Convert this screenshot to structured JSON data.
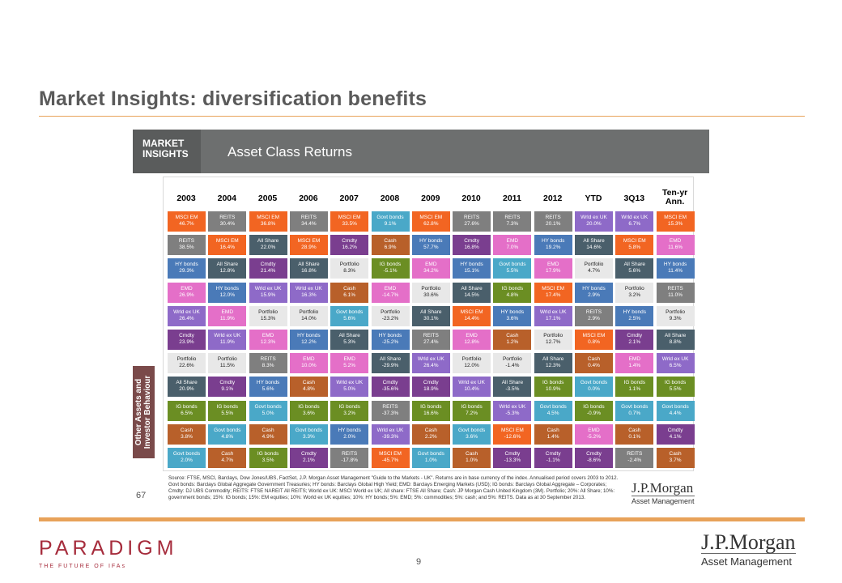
{
  "slide_title": "Market Insights: diversification benefits",
  "banner": {
    "tag_line1": "MARKET",
    "tag_line2": "INSIGHTS",
    "title": "Asset Class Returns"
  },
  "side_label": {
    "line1": "Other Assets and",
    "line2": "Investor Behaviour"
  },
  "years": [
    "2003",
    "2004",
    "2005",
    "2006",
    "2007",
    "2008",
    "2009",
    "2010",
    "2011",
    "2012",
    "YTD",
    "3Q13",
    "Ten-yr Ann."
  ],
  "asset_colors": {
    "MSCI EM": "#f26522",
    "REITS": "#7f7f7f",
    "All Share": "#4a5f6b",
    "HY bonds": "#4a7ab8",
    "EMD": "#e46fc8",
    "Wrld ex UK": "#8e6ac8",
    "Cmdty": "#7a3e8f",
    "Portfolio": "#e8e8e8",
    "Cash": "#b8602a",
    "IG bonds": "#6b8e23",
    "Govt bonds": "#4aa8c8"
  },
  "grid": [
    [
      [
        "MSCI EM",
        "46.7%"
      ],
      [
        "REITS",
        "30.4%"
      ],
      [
        "MSCI EM",
        "36.8%"
      ],
      [
        "REITS",
        "34.4%"
      ],
      [
        "MSCI EM",
        "33.5%"
      ],
      [
        "Govt bonds",
        "9.1%"
      ],
      [
        "MSCI EM",
        "62.8%"
      ],
      [
        "REITS",
        "27.6%"
      ],
      [
        "REITS",
        "7.3%"
      ],
      [
        "REITS",
        "20.1%"
      ],
      [
        "Wrld ex UK",
        "20.0%"
      ],
      [
        "Wrld ex UK",
        "6.7%"
      ],
      [
        "MSCI EM",
        "15.3%"
      ]
    ],
    [
      [
        "REITS",
        "38.5%"
      ],
      [
        "MSCI EM",
        "16.4%"
      ],
      [
        "All Share",
        "22.0%"
      ],
      [
        "MSCI EM",
        "28.9%"
      ],
      [
        "Cmdty",
        "16.2%"
      ],
      [
        "Cash",
        "6.9%"
      ],
      [
        "HY bonds",
        "57.7%"
      ],
      [
        "Cmdty",
        "16.8%"
      ],
      [
        "EMD",
        "7.0%"
      ],
      [
        "HY bonds",
        "19.2%"
      ],
      [
        "All Share",
        "14.6%"
      ],
      [
        "MSCI EM",
        "5.8%"
      ],
      [
        "EMD",
        "11.6%"
      ]
    ],
    [
      [
        "HY bonds",
        "29.3%"
      ],
      [
        "All Share",
        "12.8%"
      ],
      [
        "Cmdty",
        "21.4%"
      ],
      [
        "All Share",
        "16.8%"
      ],
      [
        "Portfolio",
        "8.3%"
      ],
      [
        "IG bonds",
        "-5.1%"
      ],
      [
        "EMD",
        "34.2%"
      ],
      [
        "HY bonds",
        "15.1%"
      ],
      [
        "Govt bonds",
        "5.5%"
      ],
      [
        "EMD",
        "17.9%"
      ],
      [
        "Portfolio",
        "4.7%"
      ],
      [
        "All Share",
        "5.6%"
      ],
      [
        "HY bonds",
        "11.4%"
      ]
    ],
    [
      [
        "EMD",
        "26.9%"
      ],
      [
        "HY bonds",
        "12.0%"
      ],
      [
        "Wrld ex UK",
        "15.9%"
      ],
      [
        "Wrld ex UK",
        "16.3%"
      ],
      [
        "Cash",
        "6.1%"
      ],
      [
        "EMD",
        "-14.7%"
      ],
      [
        "Portfolio",
        "30.6%"
      ],
      [
        "All Share",
        "14.5%"
      ],
      [
        "IG bonds",
        "4.8%"
      ],
      [
        "MSCI EM",
        "17.4%"
      ],
      [
        "HY bonds",
        "2.9%"
      ],
      [
        "Portfolio",
        "3.2%"
      ],
      [
        "REITS",
        "11.0%"
      ]
    ],
    [
      [
        "Wrld ex UK",
        "26.4%"
      ],
      [
        "EMD",
        "11.9%"
      ],
      [
        "Portfolio",
        "15.3%"
      ],
      [
        "Portfolio",
        "14.0%"
      ],
      [
        "Govt bonds",
        "5.6%"
      ],
      [
        "Portfolio",
        "-23.2%"
      ],
      [
        "All Share",
        "30.1%"
      ],
      [
        "MSCI EM",
        "14.4%"
      ],
      [
        "HY bonds",
        "3.6%"
      ],
      [
        "Wrld ex UK",
        "17.1%"
      ],
      [
        "REITS",
        "2.9%"
      ],
      [
        "HY bonds",
        "2.5%"
      ],
      [
        "Portfolio",
        "9.3%"
      ]
    ],
    [
      [
        "Cmdty",
        "23.9%"
      ],
      [
        "Wrld ex UK",
        "11.9%"
      ],
      [
        "EMD",
        "12.3%"
      ],
      [
        "HY bonds",
        "12.2%"
      ],
      [
        "All Share",
        "5.3%"
      ],
      [
        "HY bonds",
        "-25.2%"
      ],
      [
        "REITS",
        "27.4%"
      ],
      [
        "EMD",
        "12.8%"
      ],
      [
        "Cash",
        "1.2%"
      ],
      [
        "Portfolio",
        "12.7%"
      ],
      [
        "MSCI EM",
        "0.8%"
      ],
      [
        "Cmdty",
        "2.1%"
      ],
      [
        "All Share",
        "8.8%"
      ]
    ],
    [
      [
        "Portfolio",
        "22.6%"
      ],
      [
        "Portfolio",
        "11.5%"
      ],
      [
        "REITS",
        "8.3%"
      ],
      [
        "EMD",
        "10.0%"
      ],
      [
        "EMD",
        "5.2%"
      ],
      [
        "All Share",
        "-29.9%"
      ],
      [
        "Wrld ex UK",
        "26.4%"
      ],
      [
        "Portfolio",
        "12.0%"
      ],
      [
        "Portfolio",
        "-1.4%"
      ],
      [
        "All Share",
        "12.3%"
      ],
      [
        "Cash",
        "0.4%"
      ],
      [
        "EMD",
        "1.4%"
      ],
      [
        "Wrld ex UK",
        "6.5%"
      ]
    ],
    [
      [
        "All Share",
        "20.9%"
      ],
      [
        "Cmdty",
        "9.1%"
      ],
      [
        "HY bonds",
        "5.6%"
      ],
      [
        "Cash",
        "4.8%"
      ],
      [
        "Wrld ex UK",
        "5.0%"
      ],
      [
        "Cmdty",
        "-35.6%"
      ],
      [
        "Cmdty",
        "18.9%"
      ],
      [
        "Wrld ex UK",
        "10.4%"
      ],
      [
        "All Share",
        "-3.5%"
      ],
      [
        "IG bonds",
        "10.9%"
      ],
      [
        "Govt bonds",
        "0.0%"
      ],
      [
        "IG bonds",
        "1.1%"
      ],
      [
        "IG bonds",
        "5.5%"
      ]
    ],
    [
      [
        "IG bonds",
        "6.5%"
      ],
      [
        "IG bonds",
        "5.5%"
      ],
      [
        "Govt bonds",
        "5.0%"
      ],
      [
        "IG bonds",
        "3.6%"
      ],
      [
        "IG bonds",
        "3.2%"
      ],
      [
        "REITS",
        "-37.3%"
      ],
      [
        "IG bonds",
        "16.6%"
      ],
      [
        "IG bonds",
        "7.2%"
      ],
      [
        "Wrld ex UK",
        "-5.3%"
      ],
      [
        "Govt bonds",
        "4.5%"
      ],
      [
        "IG bonds",
        "-0.9%"
      ],
      [
        "Govt bonds",
        "0.7%"
      ],
      [
        "Govt bonds",
        "4.4%"
      ]
    ],
    [
      [
        "Cash",
        "3.8%"
      ],
      [
        "Govt bonds",
        "4.8%"
      ],
      [
        "Cash",
        "4.9%"
      ],
      [
        "Govt bonds",
        "3.3%"
      ],
      [
        "HY bonds",
        "2.0%"
      ],
      [
        "Wrld ex UK",
        "-39.3%"
      ],
      [
        "Cash",
        "2.2%"
      ],
      [
        "Govt bonds",
        "3.6%"
      ],
      [
        "MSCI EM",
        "-12.6%"
      ],
      [
        "Cash",
        "1.4%"
      ],
      [
        "EMD",
        "-5.2%"
      ],
      [
        "Cash",
        "0.1%"
      ],
      [
        "Cmdty",
        "4.1%"
      ]
    ],
    [
      [
        "Govt bonds",
        "2.0%"
      ],
      [
        "Cash",
        "4.7%"
      ],
      [
        "IG bonds",
        "3.5%"
      ],
      [
        "Cmdty",
        "2.1%"
      ],
      [
        "REITS",
        "-17.8%"
      ],
      [
        "MSCI EM",
        "-45.7%"
      ],
      [
        "Govt bonds",
        "1.0%"
      ],
      [
        "Cash",
        "1.0%"
      ],
      [
        "Cmdty",
        "-13.3%"
      ],
      [
        "Cmdty",
        "-1.1%"
      ],
      [
        "Cmdty",
        "-8.6%"
      ],
      [
        "REITS",
        "-2.4%"
      ],
      [
        "Cash",
        "3.7%"
      ]
    ]
  ],
  "inner_page_number": "67",
  "source_note": "Source: FTSE, MSCI, Barclays, Dow Jones/UBS, FactSet, J.P. Morgan Asset Management \"Guide to the Markets - UK\". Returns are in base currency of the index. Annualised period covers 2003 to 2012. Govt bonds: Barclays Global Aggregate Government Treasuries; HY bonds: Barclays Global High Yield; EMD: Barclays Emerging Markets (USD); IG bonds: Barclays Global Aggregate – Corporates; Cmdty: DJ UBS Commodity; REITS: FTSE NAREIT All REITS; World ex UK: MSCI World ex UK; All share: FTSE All Share; Cash: JP Morgan Cash United Kingdom (3M). Portfolio; 20%: All Share; 10%: government bonds; 15%: IG bonds; 15%: EM equities; 10%: World ex UK equities; 10%: HY bonds; 5%: EMD; 5%: commodities; 5%: cash; and 5%: REITS. Data as at 30 September 2013.",
  "jpm_small": {
    "name": "J.P.Morgan",
    "sub": "Asset Management"
  },
  "paradigm": {
    "name": "PARADIGM",
    "tagline": "THE FUTURE OF IFAs"
  },
  "page_number": "9",
  "jpm_large": {
    "name": "J.P.Morgan",
    "sub": "Asset Management"
  }
}
